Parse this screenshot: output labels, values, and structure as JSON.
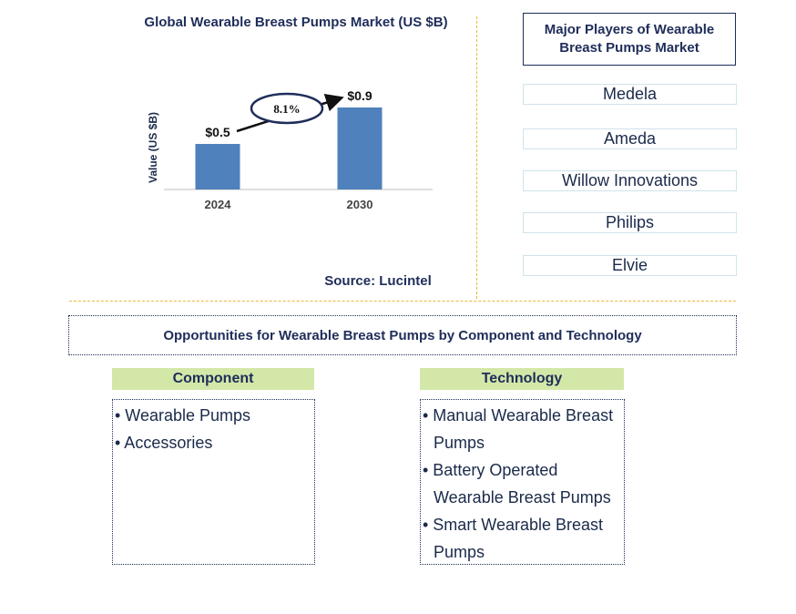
{
  "chart_data": {
    "type": "bar",
    "title": "Global Wearable Breast Pumps Market (US $B)",
    "ylabel": "Value (US $B)",
    "categories": [
      "2024",
      "2030"
    ],
    "values": [
      0.5,
      0.9
    ],
    "value_labels": [
      "$0.5",
      "$0.9"
    ],
    "ylim": [
      0,
      1.0
    ],
    "bar_color": "#4f81bd",
    "cagr_label": "8.1%",
    "grid": false
  },
  "source": "Source: Lucintel",
  "players": {
    "title": "Major Players of Wearable Breast Pumps Market",
    "items": [
      "Medela",
      "Ameda",
      "Willow Innovations",
      "Philips",
      "Elvie"
    ]
  },
  "opportunities": {
    "title": "Opportunities for Wearable Breast Pumps by Component and Technology",
    "component": {
      "header": "Component",
      "items": [
        "• Wearable Pumps",
        "• Accessories"
      ]
    },
    "technology": {
      "header": "Technology",
      "items": [
        "• Manual Wearable Breast Pumps",
        "• Battery Operated Wearable Breast Pumps",
        "• Smart Wearable Breast Pumps"
      ]
    }
  },
  "colors": {
    "accent": "#1f2d5a",
    "divider": "#e8b93a",
    "header_bg": "#d3e8a8"
  }
}
